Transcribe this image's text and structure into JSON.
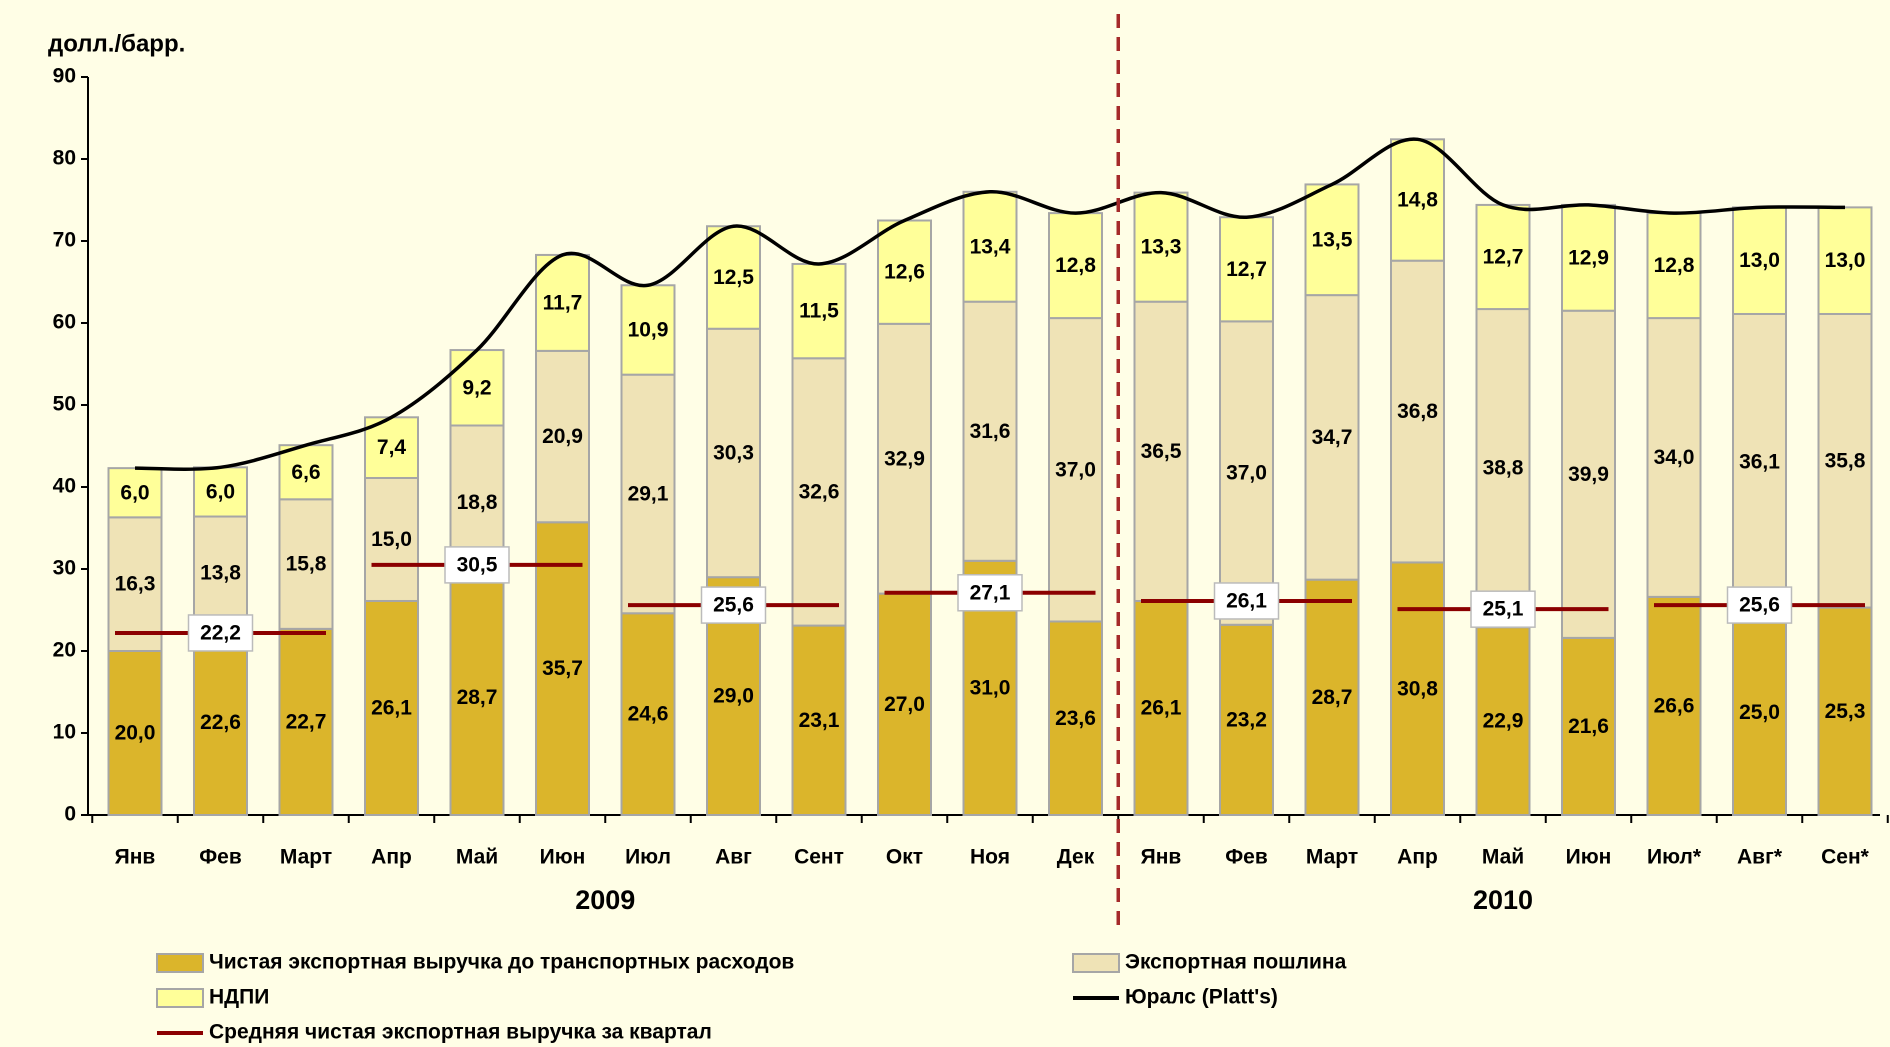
{
  "chart_data": {
    "type": "stacked_bar_line",
    "y_label": "долл./барр.",
    "categories": [
      "Янв",
      "Фев",
      "Март",
      "Апр",
      "Май",
      "Июн",
      "Июл",
      "Авг",
      "Сент",
      "Окт",
      "Ноя",
      "Дек",
      "Янв",
      "Фев",
      "Март",
      "Апр",
      "Май",
      "Июн",
      "Июл*",
      "Авг*",
      "Сен*"
    ],
    "years": [
      "2009",
      "2010"
    ],
    "ylim": [
      0,
      90
    ],
    "yticks": [
      0,
      10,
      20,
      30,
      40,
      50,
      60,
      70,
      80,
      90
    ],
    "series": [
      {
        "name": "Чистая экспортная выручка до транспортных расходов",
        "color": "#dbb52b",
        "values": [
          20.0,
          22.6,
          22.7,
          26.1,
          28.7,
          35.7,
          24.6,
          29.0,
          23.1,
          27.0,
          31.0,
          23.6,
          26.1,
          23.2,
          28.7,
          30.8,
          22.9,
          21.6,
          26.6,
          25.0,
          25.3
        ],
        "value_labels": [
          "20,0",
          "22,6",
          "22,7",
          "26,1",
          "28,7",
          "35,7",
          "24,6",
          "29,0",
          "23,1",
          "27,0",
          "31,0",
          "23,6",
          "26,1",
          "23,2",
          "28,7",
          "30,8",
          "22,9",
          "21,6",
          "26,6",
          "25,0",
          "25,3"
        ]
      },
      {
        "name": "Экспортная пошлина",
        "color": "#efe3b6",
        "values": [
          16.3,
          13.8,
          15.8,
          15.0,
          18.8,
          20.9,
          29.1,
          30.3,
          32.6,
          32.9,
          31.6,
          37.0,
          36.5,
          37.0,
          34.7,
          36.8,
          38.8,
          39.9,
          34.0,
          36.1,
          35.8
        ],
        "value_labels": [
          "16,3",
          "13,8",
          "15,8",
          "15,0",
          "18,8",
          "20,9",
          "29,1",
          "30,3",
          "32,6",
          "32,9",
          "31,6",
          "37,0",
          "36,5",
          "37,0",
          "34,7",
          "36,8",
          "38,8",
          "39,9",
          "34,0",
          "36,1",
          "35,8"
        ]
      },
      {
        "name": "НДПИ",
        "color": "#ffff99",
        "values": [
          6.0,
          6.0,
          6.6,
          7.4,
          9.2,
          11.7,
          10.9,
          12.5,
          11.5,
          12.6,
          13.4,
          12.8,
          13.3,
          12.7,
          13.5,
          14.8,
          12.7,
          12.9,
          12.8,
          13.0,
          13.0
        ],
        "value_labels": [
          "6,0",
          "6,0",
          "6,6",
          "7,4",
          "9,2",
          "11,7",
          "10,9",
          "12,5",
          "11,5",
          "12,6",
          "13,4",
          "12,8",
          "13,3",
          "12,7",
          "13,5",
          "14,8",
          "12,7",
          "12,9",
          "12,8",
          "13,0",
          "13,0"
        ]
      }
    ],
    "line": {
      "name": "Юралс (Platt's)",
      "color": "#000000",
      "values": [
        42.3,
        42.4,
        45.1,
        48.5,
        56.7,
        68.3,
        64.6,
        71.8,
        67.2,
        72.5,
        76.0,
        73.4,
        75.9,
        72.9,
        76.9,
        82.4,
        74.4,
        74.4,
        73.4,
        74.1,
        74.1
      ]
    },
    "quarterly_average": {
      "name": "Средняя чистая экспортная выручка за квартал",
      "color": "#8b0000",
      "values": [
        22.2,
        30.5,
        25.6,
        27.1,
        26.1,
        25.1,
        25.6
      ],
      "value_labels": [
        "22,2",
        "30,5",
        "25,6",
        "27,1",
        "26,1",
        "25,1",
        "25,6"
      ]
    }
  }
}
